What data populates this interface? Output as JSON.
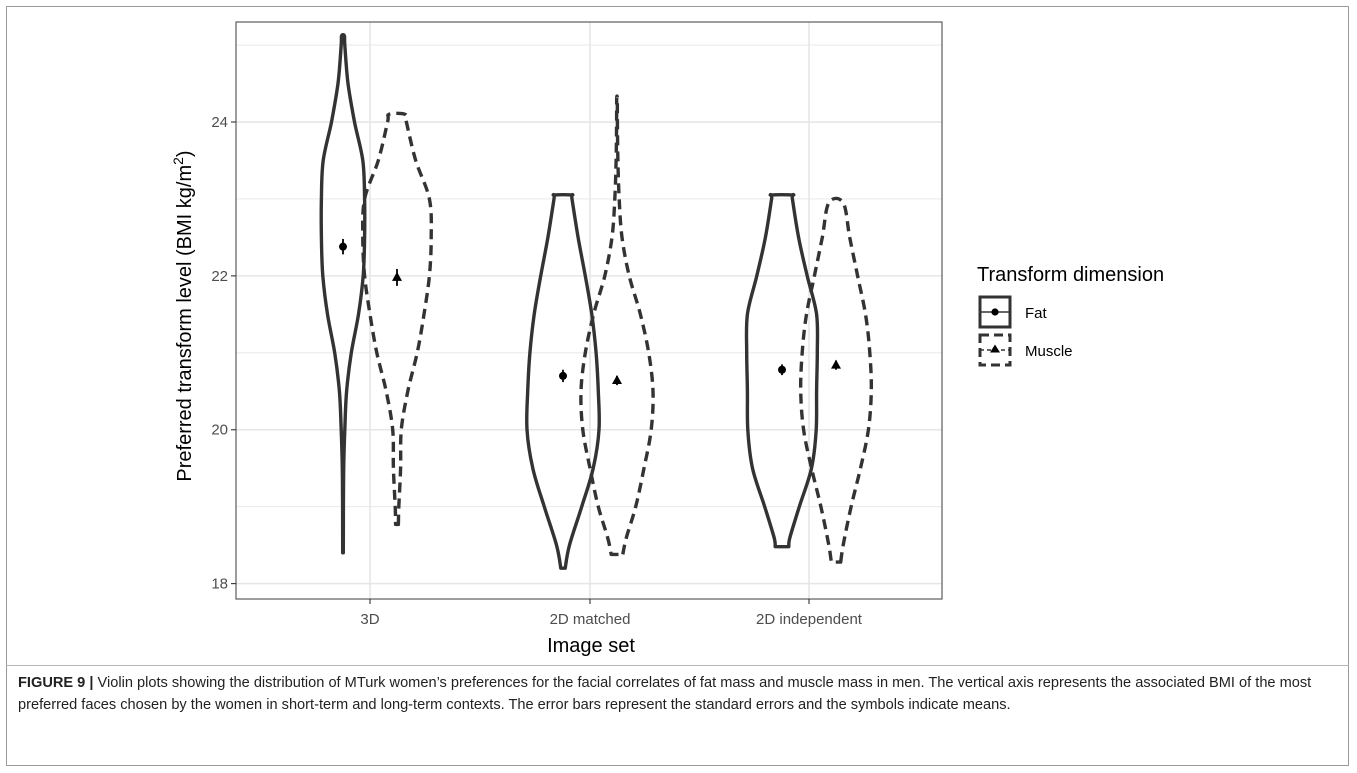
{
  "chart_data": {
    "type": "violin",
    "xlabel": "Image set",
    "ylabel_main": "Preferred transform level (BMI kg/m",
    "ylabel_sup": "2",
    "ylabel_close": ")",
    "categories": [
      "3D",
      "2D matched",
      "2D independent"
    ],
    "yticks": [
      18,
      20,
      22,
      24
    ],
    "ylim": [
      17.8,
      25.3
    ],
    "grid": true,
    "legend": {
      "title": "Transform dimension",
      "position": "right",
      "entries": [
        {
          "label": "Fat",
          "linestyle": "solid",
          "marker": "circle"
        },
        {
          "label": "Muscle",
          "linestyle": "dashed",
          "marker": "triangle"
        }
      ]
    },
    "series": [
      {
        "name": "Fat",
        "linestyle": "solid",
        "marker": "circle",
        "means": [
          22.38,
          20.7,
          20.78
        ],
        "se": [
          0.1,
          0.08,
          0.07
        ],
        "ranges": [
          [
            18.4,
            25.12
          ],
          [
            18.2,
            23.05
          ],
          [
            18.48,
            23.05
          ]
        ],
        "profiles": [
          [
            [
              18.4,
              0.008
            ],
            [
              19.0,
              0.012
            ],
            [
              19.5,
              0.02
            ],
            [
              20.0,
              0.05
            ],
            [
              20.5,
              0.1
            ],
            [
              21.0,
              0.23
            ],
            [
              21.5,
              0.43
            ],
            [
              22.0,
              0.56
            ],
            [
              22.5,
              0.6
            ],
            [
              23.0,
              0.6
            ],
            [
              23.5,
              0.55
            ],
            [
              24.0,
              0.32
            ],
            [
              24.5,
              0.14
            ],
            [
              25.0,
              0.05
            ],
            [
              25.12,
              0.04
            ]
          ],
          [
            [
              18.2,
              0.06
            ],
            [
              18.5,
              0.18
            ],
            [
              19.0,
              0.52
            ],
            [
              19.5,
              0.84
            ],
            [
              20.0,
              1.0
            ],
            [
              20.5,
              0.98
            ],
            [
              21.0,
              0.92
            ],
            [
              21.5,
              0.8
            ],
            [
              22.0,
              0.62
            ],
            [
              22.5,
              0.42
            ],
            [
              23.0,
              0.25
            ],
            [
              23.05,
              0.24
            ]
          ],
          [
            [
              18.48,
              0.19
            ],
            [
              18.6,
              0.22
            ],
            [
              19.0,
              0.48
            ],
            [
              19.5,
              0.82
            ],
            [
              20.0,
              0.95
            ],
            [
              20.5,
              0.96
            ],
            [
              21.0,
              0.98
            ],
            [
              21.5,
              0.96
            ],
            [
              22.0,
              0.7
            ],
            [
              22.5,
              0.46
            ],
            [
              23.0,
              0.29
            ],
            [
              23.05,
              0.29
            ]
          ]
        ]
      },
      {
        "name": "Muscle",
        "linestyle": "dashed",
        "marker": "triangle",
        "means": [
          21.98,
          20.64,
          20.84
        ],
        "se": [
          0.11,
          0.06,
          0.06
        ],
        "ranges": [
          [
            18.77,
            24.1
          ],
          [
            18.38,
            24.3
          ],
          [
            18.28,
            22.95
          ]
        ],
        "profiles": [
          [
            [
              18.77,
              0.04
            ],
            [
              19.0,
              0.05
            ],
            [
              19.5,
              0.1
            ],
            [
              20.0,
              0.12
            ],
            [
              20.5,
              0.3
            ],
            [
              21.0,
              0.56
            ],
            [
              21.5,
              0.75
            ],
            [
              22.0,
              0.9
            ],
            [
              22.5,
              0.95
            ],
            [
              23.0,
              0.9
            ],
            [
              23.5,
              0.52
            ],
            [
              24.0,
              0.26
            ],
            [
              24.1,
              0.22
            ]
          ],
          [
            [
              18.38,
              0.16
            ],
            [
              18.6,
              0.26
            ],
            [
              19.0,
              0.52
            ],
            [
              19.5,
              0.75
            ],
            [
              20.0,
              0.95
            ],
            [
              20.5,
              1.0
            ],
            [
              21.0,
              0.88
            ],
            [
              21.5,
              0.65
            ],
            [
              22.0,
              0.34
            ],
            [
              22.5,
              0.14
            ],
            [
              23.0,
              0.06
            ],
            [
              23.5,
              0.025
            ],
            [
              24.0,
              0.012
            ],
            [
              24.3,
              0.008
            ]
          ],
          [
            [
              18.28,
              0.13
            ],
            [
              18.5,
              0.2
            ],
            [
              19.0,
              0.42
            ],
            [
              19.5,
              0.68
            ],
            [
              20.0,
              0.9
            ],
            [
              20.5,
              0.98
            ],
            [
              21.0,
              0.94
            ],
            [
              21.5,
              0.82
            ],
            [
              22.0,
              0.6
            ],
            [
              22.5,
              0.38
            ],
            [
              22.95,
              0.2
            ]
          ]
        ]
      }
    ]
  },
  "caption": {
    "label": "FIGURE 9 |",
    "text": " Violin plots showing the distribution of MTurk women’s preferences for the facial correlates of fat mass and muscle mass in men. The vertical axis represents the associated BMI of the most preferred faces chosen by the women in short-term and long-term contexts. The error bars represent the standard errors and the symbols indicate means."
  },
  "colors": {
    "line": "#333333",
    "grid": "#e6e6e6",
    "panel_border": "#4d4d4d",
    "axis_text": "#4d4d4d",
    "title_text": "#000000"
  }
}
